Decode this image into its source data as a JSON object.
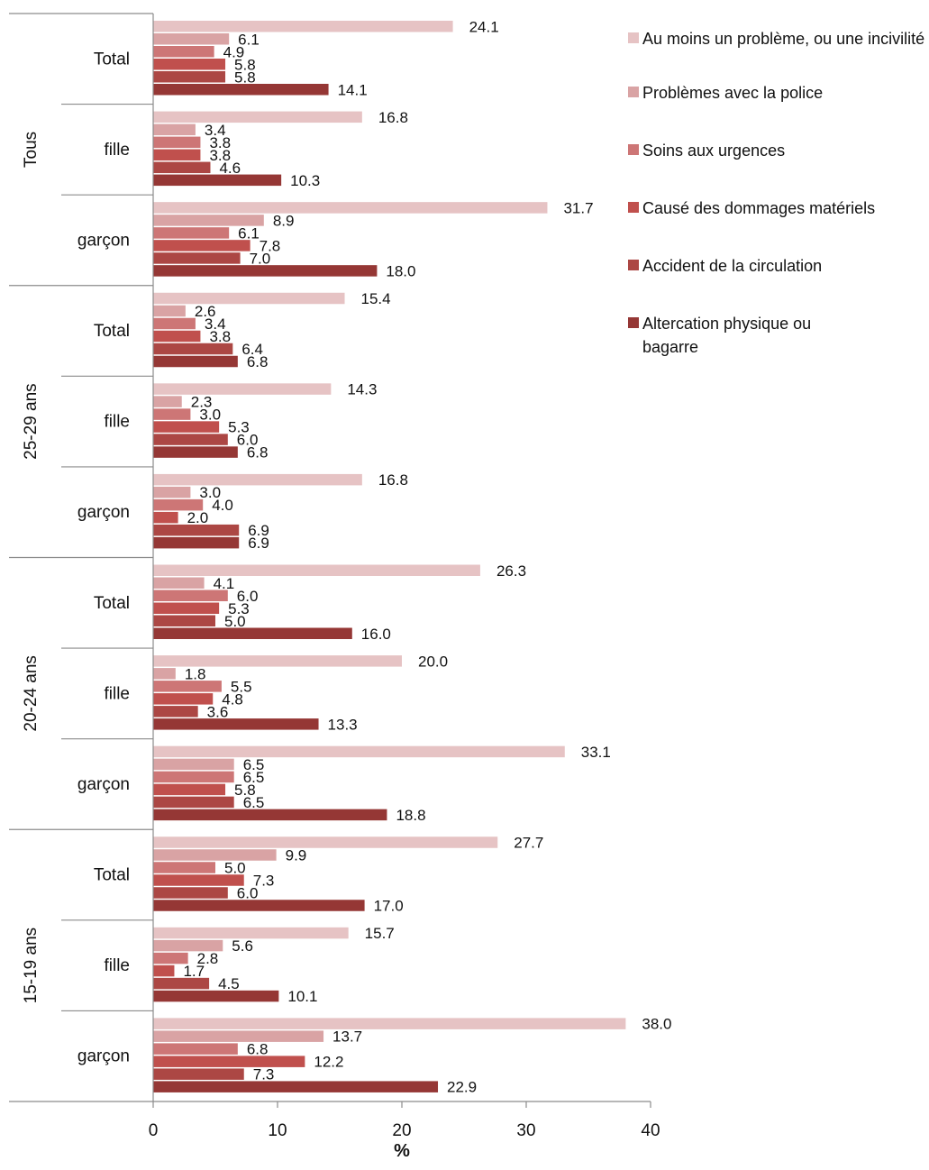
{
  "chart_data": {
    "type": "bar",
    "orientation": "horizontal",
    "xlabel": "%",
    "xlim": [
      0,
      40
    ],
    "xticks": [
      0,
      10,
      20,
      30,
      40
    ],
    "grid": false,
    "legend_position": "right",
    "groups": [
      {
        "label": "Tous",
        "rows": [
          {
            "label": "Total",
            "values": [
              24.1,
              6.1,
              4.9,
              5.8,
              5.8,
              14.1
            ]
          },
          {
            "label": "fille",
            "values": [
              16.8,
              3.4,
              3.8,
              3.8,
              4.6,
              10.3
            ]
          },
          {
            "label": "garçon",
            "values": [
              31.7,
              8.9,
              6.1,
              7.8,
              7.0,
              18.0
            ]
          }
        ]
      },
      {
        "label": "25-29 ans",
        "rows": [
          {
            "label": "Total",
            "values": [
              15.4,
              2.6,
              3.4,
              3.8,
              6.4,
              6.8
            ]
          },
          {
            "label": "fille",
            "values": [
              14.3,
              2.3,
              3.0,
              5.3,
              6.0,
              6.8
            ]
          },
          {
            "label": "garçon",
            "values": [
              16.8,
              3.0,
              4.0,
              2.0,
              6.9,
              6.9
            ]
          }
        ]
      },
      {
        "label": "20-24 ans",
        "rows": [
          {
            "label": "Total",
            "values": [
              26.3,
              4.1,
              6.0,
              5.3,
              5.0,
              16.0
            ]
          },
          {
            "label": "fille",
            "values": [
              20.0,
              1.8,
              5.5,
              4.8,
              3.6,
              13.3
            ]
          },
          {
            "label": "garçon",
            "values": [
              33.1,
              6.5,
              6.5,
              5.8,
              6.5,
              18.8
            ]
          }
        ]
      },
      {
        "label": "15-19 ans",
        "rows": [
          {
            "label": "Total",
            "values": [
              27.7,
              9.9,
              5.0,
              7.3,
              6.0,
              17.0
            ]
          },
          {
            "label": "fille",
            "values": [
              15.7,
              5.6,
              2.8,
              1.7,
              4.5,
              10.1
            ]
          },
          {
            "label": "garçon",
            "values": [
              38.0,
              13.7,
              6.8,
              12.2,
              7.3,
              22.9
            ]
          }
        ]
      }
    ],
    "series": [
      {
        "name": "Au moins un problème, ou une incivilité",
        "color": "#e6c3c4"
      },
      {
        "name": "Problèmes avec la police",
        "color": "#d9a3a4"
      },
      {
        "name": "Soins aux urgences",
        "color": "#cd7676"
      },
      {
        "name": "Causé des dommages matériels",
        "color": "#c0504d"
      },
      {
        "name": "Accident de la circulation",
        "color": "#ac4744"
      },
      {
        "name": "Altercation physique ou bagarre",
        "color": "#953735"
      }
    ]
  }
}
